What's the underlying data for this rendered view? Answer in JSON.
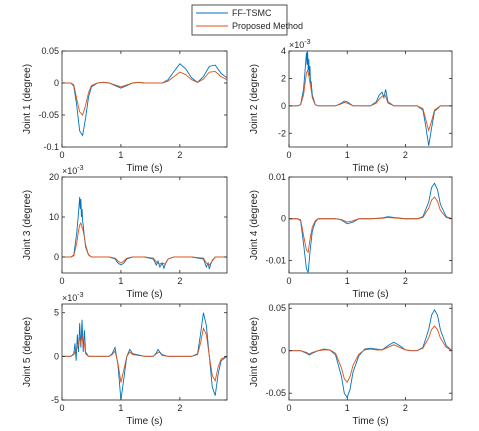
{
  "legend": {
    "entries": [
      {
        "name": "FF-TSMC",
        "color": "#0072BD"
      },
      {
        "name": "Proposed Method",
        "color": "#D95319"
      }
    ]
  },
  "chart_data": [
    {
      "type": "line",
      "ylabel": "Joint 1 (degree)",
      "xlabel": "Time (s)",
      "xlim": [
        0,
        2.8
      ],
      "ylim": [
        -0.1,
        0.05
      ],
      "xticks": [
        0,
        1,
        2
      ],
      "xtick_labels": [
        "0",
        "1",
        "2"
      ],
      "yticks": [
        -0.1,
        -0.05,
        0,
        0.05
      ],
      "ytick_labels": [
        "-0.1",
        "-0.05",
        "0",
        "0.05"
      ],
      "exponent": "",
      "series": [
        {
          "name": "FF-TSMC",
          "x": [
            0,
            0.15,
            0.2,
            0.25,
            0.3,
            0.35,
            0.4,
            0.45,
            0.5,
            0.6,
            0.7,
            0.8,
            0.9,
            1.0,
            1.1,
            1.2,
            1.3,
            1.4,
            1.5,
            1.6,
            1.7,
            1.8,
            1.9,
            2.0,
            2.1,
            2.2,
            2.3,
            2.4,
            2.5,
            2.6,
            2.7,
            2.8
          ],
          "y": [
            0,
            0,
            -0.005,
            -0.035,
            -0.075,
            -0.082,
            -0.055,
            -0.022,
            -0.006,
            0,
            0.001,
            0,
            -0.004,
            -0.008,
            -0.004,
            0,
            0.001,
            0,
            0,
            0,
            0,
            0.005,
            0.018,
            0.03,
            0.022,
            0.008,
            0.001,
            0.01,
            0.026,
            0.028,
            0.015,
            0.008
          ]
        },
        {
          "name": "Proposed Method",
          "x": [
            0,
            0.15,
            0.2,
            0.25,
            0.3,
            0.35,
            0.4,
            0.45,
            0.5,
            0.6,
            0.7,
            0.8,
            0.9,
            1.0,
            1.1,
            1.2,
            1.3,
            1.4,
            1.5,
            1.6,
            1.7,
            1.8,
            1.9,
            2.0,
            2.1,
            2.2,
            2.3,
            2.4,
            2.5,
            2.6,
            2.7,
            2.8
          ],
          "y": [
            0,
            0,
            -0.003,
            -0.025,
            -0.045,
            -0.05,
            -0.035,
            -0.015,
            -0.004,
            0,
            0.001,
            0,
            -0.003,
            -0.006,
            -0.003,
            0,
            0.001,
            0,
            0,
            0,
            0,
            0.003,
            0.01,
            0.017,
            0.013,
            0.005,
            0.001,
            0.006,
            0.017,
            0.018,
            0.01,
            0.005
          ]
        }
      ]
    },
    {
      "type": "line",
      "ylabel": "Joint 2 (degree)",
      "xlabel": "Time (s)",
      "xlim": [
        0,
        2.8
      ],
      "ylim": [
        -3,
        4
      ],
      "xticks": [
        0,
        1,
        2
      ],
      "xtick_labels": [
        "0",
        "1",
        "2"
      ],
      "yticks": [
        -2,
        0,
        2,
        4
      ],
      "ytick_labels": [
        "-2",
        "0",
        "2",
        "4"
      ],
      "exponent": "×10^-3",
      "series": [
        {
          "name": "FF-TSMC",
          "x": [
            0,
            0.15,
            0.2,
            0.25,
            0.28,
            0.3,
            0.31,
            0.32,
            0.33,
            0.34,
            0.35,
            0.36,
            0.37,
            0.38,
            0.4,
            0.45,
            0.5,
            0.6,
            0.7,
            0.8,
            0.9,
            0.95,
            1.0,
            1.1,
            1.2,
            1.4,
            1.5,
            1.55,
            1.6,
            1.63,
            1.66,
            1.7,
            1.8,
            2.0,
            2.2,
            2.3,
            2.35,
            2.4,
            2.45,
            2.5,
            2.6,
            2.7,
            2.8
          ],
          "y": [
            0,
            0,
            0.1,
            1.2,
            2.8,
            3.9,
            3.0,
            4.0,
            2.6,
            3.4,
            2.2,
            2.9,
            1.6,
            1.8,
            0.8,
            0.1,
            0,
            0,
            0,
            0,
            0.2,
            0.35,
            0.3,
            0,
            0,
            0,
            0.3,
            0.8,
            1.0,
            0.6,
            1.2,
            0.3,
            0,
            0,
            0,
            -0.3,
            -1.5,
            -2.9,
            -1.6,
            -0.4,
            0,
            0,
            0
          ]
        },
        {
          "name": "Proposed Method",
          "x": [
            0,
            0.15,
            0.2,
            0.25,
            0.28,
            0.3,
            0.32,
            0.34,
            0.36,
            0.38,
            0.4,
            0.45,
            0.5,
            0.6,
            0.7,
            0.8,
            0.9,
            0.95,
            1.0,
            1.1,
            1.2,
            1.4,
            1.5,
            1.55,
            1.6,
            1.65,
            1.7,
            1.8,
            2.0,
            2.2,
            2.3,
            2.35,
            2.4,
            2.45,
            2.5,
            2.6,
            2.7,
            2.8
          ],
          "y": [
            0,
            0,
            0.08,
            0.8,
            1.8,
            2.4,
            2.6,
            2.2,
            1.7,
            1.2,
            0.6,
            0.08,
            0,
            0,
            0,
            0,
            0.15,
            0.25,
            0.2,
            0,
            0,
            0,
            0.2,
            0.5,
            0.7,
            0.8,
            0.2,
            0,
            0,
            0,
            -0.2,
            -1.0,
            -1.8,
            -1.1,
            -0.3,
            0,
            0,
            0
          ]
        }
      ]
    },
    {
      "type": "line",
      "ylabel": "Joint 3 (degree)",
      "xlabel": "Time (s)",
      "xlim": [
        0,
        2.8
      ],
      "ylim": [
        -4,
        20
      ],
      "xticks": [
        0,
        1,
        2
      ],
      "xtick_labels": [
        "0",
        "1",
        "2"
      ],
      "yticks": [
        0,
        10,
        20
      ],
      "ytick_labels": [
        "0",
        "10",
        "20"
      ],
      "exponent": "×10^-3",
      "series": [
        {
          "name": "FF-TSMC",
          "x": [
            0,
            0.15,
            0.2,
            0.25,
            0.28,
            0.3,
            0.31,
            0.32,
            0.33,
            0.34,
            0.35,
            0.36,
            0.38,
            0.4,
            0.45,
            0.5,
            0.6,
            0.8,
            0.9,
            0.95,
            1.0,
            1.05,
            1.1,
            1.2,
            1.4,
            1.55,
            1.6,
            1.63,
            1.66,
            1.7,
            1.73,
            1.76,
            1.8,
            1.9,
            2.2,
            2.4,
            2.45,
            2.48,
            2.5,
            2.52,
            2.55,
            2.6,
            2.7,
            2.8
          ],
          "y": [
            0,
            0,
            0.5,
            6,
            11,
            15,
            12,
            14.5,
            10,
            12,
            9,
            8,
            5,
            2.5,
            0.5,
            0,
            0,
            0,
            -0.5,
            -1.5,
            -2,
            -1.5,
            -0.5,
            0,
            0,
            -0.5,
            -2,
            -1,
            -2.5,
            -1.5,
            -2.8,
            -1.5,
            -0.5,
            0,
            0,
            -0.5,
            -2.5,
            -1.5,
            -3,
            -2,
            -0.8,
            0,
            0,
            0
          ]
        },
        {
          "name": "Proposed Method",
          "x": [
            0,
            0.15,
            0.2,
            0.25,
            0.28,
            0.3,
            0.32,
            0.34,
            0.36,
            0.38,
            0.4,
            0.45,
            0.5,
            0.6,
            0.8,
            0.9,
            0.95,
            1.0,
            1.05,
            1.1,
            1.2,
            1.4,
            1.55,
            1.6,
            1.65,
            1.7,
            1.75,
            1.8,
            1.9,
            2.2,
            2.4,
            2.45,
            2.5,
            2.55,
            2.6,
            2.7,
            2.8
          ],
          "y": [
            0,
            0,
            0.3,
            3.5,
            6.5,
            8,
            8.5,
            7.5,
            6.5,
            5,
            3,
            0.6,
            0,
            0,
            0,
            -0.3,
            -1,
            -1.5,
            -1,
            -0.3,
            0,
            0,
            -0.3,
            -1.2,
            -1.8,
            -1.5,
            -1.8,
            -0.5,
            0,
            0,
            -0.3,
            -1.5,
            -2,
            -1,
            0,
            0,
            0
          ]
        }
      ]
    },
    {
      "type": "line",
      "ylabel": "Joint 4 (degree)",
      "xlabel": "Time (s)",
      "xlim": [
        0,
        2.8
      ],
      "ylim": [
        -0.013,
        0.01
      ],
      "xticks": [
        0,
        1,
        2
      ],
      "xtick_labels": [
        "0",
        "1",
        "2"
      ],
      "yticks": [
        -0.01,
        0,
        0.01
      ],
      "ytick_labels": [
        "-0.01",
        "0",
        "0.01"
      ],
      "exponent": "",
      "series": [
        {
          "name": "FF-TSMC",
          "x": [
            0,
            0.15,
            0.2,
            0.25,
            0.3,
            0.33,
            0.36,
            0.4,
            0.45,
            0.5,
            0.6,
            0.8,
            0.9,
            1.0,
            1.1,
            1.2,
            1.4,
            1.6,
            1.7,
            1.8,
            2.0,
            2.2,
            2.3,
            2.4,
            2.45,
            2.5,
            2.55,
            2.6,
            2.7,
            2.8
          ],
          "y": [
            0,
            0,
            -0.0005,
            -0.006,
            -0.012,
            -0.0128,
            -0.008,
            -0.003,
            -0.0008,
            0,
            0,
            0,
            -0.0003,
            -0.0012,
            -0.0008,
            0,
            0,
            0.0002,
            0.0005,
            0.0003,
            0,
            0,
            0.0005,
            0.004,
            0.0075,
            0.0085,
            0.007,
            0.0035,
            0.0005,
            0
          ]
        },
        {
          "name": "Proposed Method",
          "x": [
            0,
            0.15,
            0.2,
            0.25,
            0.3,
            0.33,
            0.36,
            0.4,
            0.45,
            0.5,
            0.6,
            0.8,
            0.9,
            1.0,
            1.1,
            1.2,
            1.4,
            1.6,
            1.7,
            1.8,
            2.0,
            2.2,
            2.3,
            2.4,
            2.45,
            2.5,
            2.55,
            2.6,
            2.7,
            2.8
          ],
          "y": [
            0,
            0,
            -0.0003,
            -0.004,
            -0.0075,
            -0.008,
            -0.005,
            -0.002,
            -0.0005,
            0,
            0,
            0,
            -0.0002,
            -0.0008,
            -0.0005,
            0,
            0,
            0.0001,
            0.0003,
            0.0002,
            0,
            0,
            0.0003,
            0.0025,
            0.0045,
            0.0052,
            0.0042,
            0.002,
            0.0003,
            0
          ]
        }
      ]
    },
    {
      "type": "line",
      "ylabel": "Joint 5 (degree)",
      "xlabel": "Time (s)",
      "xlim": [
        0,
        2.8
      ],
      "ylim": [
        -5,
        6
      ],
      "xticks": [
        0,
        1,
        2
      ],
      "xtick_labels": [
        "0",
        "1",
        "2"
      ],
      "yticks": [
        -5,
        0,
        5
      ],
      "ytick_labels": [
        "-5",
        "0",
        "5"
      ],
      "exponent": "×10^-3",
      "series": [
        {
          "name": "FF-TSMC",
          "x": [
            0,
            0.15,
            0.2,
            0.22,
            0.24,
            0.26,
            0.28,
            0.3,
            0.32,
            0.34,
            0.36,
            0.38,
            0.4,
            0.45,
            0.5,
            0.6,
            0.7,
            0.8,
            0.85,
            0.9,
            0.95,
            1.0,
            1.05,
            1.1,
            1.15,
            1.2,
            1.4,
            1.55,
            1.6,
            1.63,
            1.66,
            1.7,
            1.8,
            2.0,
            2.2,
            2.3,
            2.35,
            2.4,
            2.45,
            2.5,
            2.55,
            2.6,
            2.65,
            2.7,
            2.8
          ],
          "y": [
            0,
            0,
            0.3,
            1.5,
            -0.5,
            2.5,
            0.5,
            3.8,
            1,
            4.2,
            0.5,
            3,
            0.5,
            0,
            0,
            0,
            0,
            0,
            0.3,
            1,
            -1,
            -5,
            -2.5,
            0,
            0.8,
            0.3,
            0,
            0,
            0.4,
            0.8,
            0.5,
            0.2,
            0,
            0,
            0,
            0.3,
            2.5,
            5,
            3.5,
            0,
            -3.5,
            -4.5,
            -2,
            -0.5,
            0
          ]
        },
        {
          "name": "Proposed Method",
          "x": [
            0,
            0.15,
            0.2,
            0.24,
            0.28,
            0.3,
            0.32,
            0.34,
            0.36,
            0.38,
            0.4,
            0.45,
            0.5,
            0.6,
            0.7,
            0.8,
            0.85,
            0.9,
            0.95,
            1.0,
            1.05,
            1.1,
            1.15,
            1.2,
            1.4,
            1.55,
            1.6,
            1.65,
            1.7,
            1.8,
            2.0,
            2.2,
            2.3,
            2.35,
            2.4,
            2.45,
            2.5,
            2.55,
            2.6,
            2.65,
            2.7,
            2.8
          ],
          "y": [
            0,
            0,
            0.2,
            0.8,
            1.2,
            2.2,
            1.5,
            2.5,
            1.2,
            1.5,
            0.3,
            0,
            0,
            0,
            0,
            0,
            0.2,
            0.6,
            -0.8,
            -3,
            -1.5,
            0,
            0.5,
            0.2,
            0,
            0,
            0.3,
            0.5,
            0.1,
            0,
            0,
            0,
            0.2,
            1.5,
            3.2,
            2.5,
            0,
            -2.2,
            -2.8,
            -1.2,
            -0.3,
            0
          ]
        }
      ]
    },
    {
      "type": "line",
      "ylabel": "Joint 6 (degree)",
      "xlabel": "Time (s)",
      "xlim": [
        0,
        2.8
      ],
      "ylim": [
        -0.058,
        0.055
      ],
      "xticks": [
        0,
        1,
        2
      ],
      "xtick_labels": [
        "0",
        "1",
        "2"
      ],
      "yticks": [
        -0.05,
        0,
        0.05
      ],
      "ytick_labels": [
        "-0.05",
        "0",
        "0.05"
      ],
      "exponent": "",
      "series": [
        {
          "name": "FF-TSMC",
          "x": [
            0,
            0.2,
            0.3,
            0.35,
            0.4,
            0.5,
            0.6,
            0.7,
            0.8,
            0.9,
            0.95,
            1.0,
            1.05,
            1.1,
            1.2,
            1.3,
            1.4,
            1.5,
            1.6,
            1.7,
            1.8,
            1.9,
            2.0,
            2.1,
            2.2,
            2.3,
            2.4,
            2.45,
            2.5,
            2.55,
            2.6,
            2.7,
            2.8
          ],
          "y": [
            0,
            0,
            -0.003,
            -0.005,
            -0.003,
            0,
            0.002,
            0.001,
            -0.005,
            -0.03,
            -0.05,
            -0.055,
            -0.045,
            -0.025,
            -0.006,
            0.002,
            0.003,
            0.002,
            0.001,
            0.006,
            0.01,
            0.006,
            0.001,
            0,
            0,
            0.004,
            0.025,
            0.042,
            0.048,
            0.042,
            0.025,
            0.006,
            0
          ]
        },
        {
          "name": "Proposed Method",
          "x": [
            0,
            0.2,
            0.3,
            0.35,
            0.4,
            0.5,
            0.6,
            0.7,
            0.8,
            0.9,
            0.95,
            1.0,
            1.05,
            1.1,
            1.2,
            1.3,
            1.4,
            1.5,
            1.6,
            1.7,
            1.8,
            1.9,
            2.0,
            2.1,
            2.2,
            2.3,
            2.4,
            2.45,
            2.5,
            2.55,
            2.6,
            2.7,
            2.8
          ],
          "y": [
            0,
            0,
            -0.002,
            -0.004,
            -0.002,
            0,
            0.001,
            0.001,
            -0.003,
            -0.02,
            -0.033,
            -0.037,
            -0.03,
            -0.017,
            -0.004,
            0.001,
            0.002,
            0.001,
            0.001,
            0.004,
            0.007,
            0.004,
            0.001,
            0,
            0,
            0.003,
            0.015,
            0.025,
            0.029,
            0.025,
            0.015,
            0.004,
            0
          ]
        }
      ]
    }
  ]
}
